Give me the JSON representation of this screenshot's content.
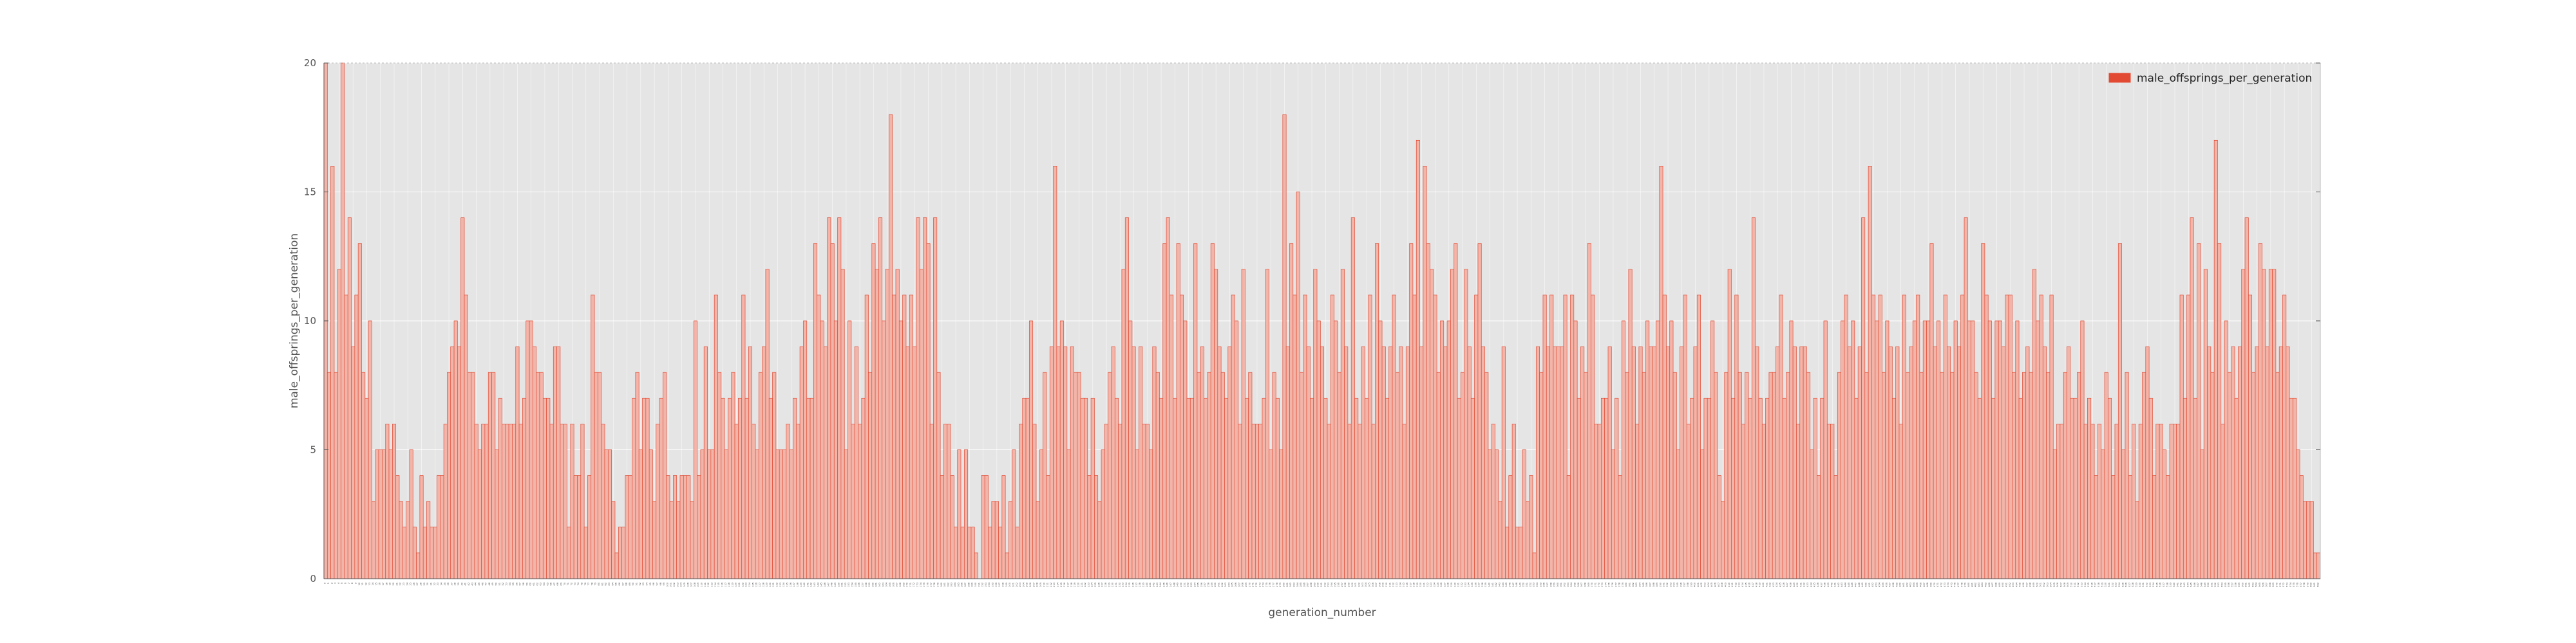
{
  "chart_data": {
    "type": "bar",
    "xlabel": "generation_number",
    "ylabel": "male_offsprings_per_generation",
    "ylim": [
      0,
      20
    ],
    "yticks": [
      0,
      5,
      10,
      15,
      20
    ],
    "grid": true,
    "legend_placement": "top-right",
    "colors": {
      "background": "#e5e5e5",
      "grid": "#ffffff",
      "bar_edge": "#e24a33",
      "bar_fill": "#f2b5aa",
      "text": "#555555"
    },
    "series": [
      {
        "name": "male_offsprings_per_generation",
        "values": [
          20,
          8,
          16,
          8,
          12,
          20,
          11,
          14,
          9,
          11,
          13,
          8,
          7,
          10,
          3,
          5,
          5,
          5,
          6,
          5,
          6,
          4,
          3,
          2,
          3,
          5,
          2,
          1,
          4,
          2,
          3,
          2,
          2,
          4,
          4,
          6,
          8,
          9,
          10,
          9,
          14,
          11,
          8,
          8,
          6,
          5,
          6,
          6,
          8,
          8,
          5,
          7,
          6,
          6,
          6,
          6,
          9,
          6,
          7,
          10,
          10,
          9,
          8,
          8,
          7,
          7,
          6,
          9,
          9,
          6,
          6,
          2,
          6,
          4,
          4,
          6,
          2,
          4,
          11,
          8,
          8,
          6,
          5,
          5,
          3,
          1,
          2,
          2,
          4,
          4,
          7,
          8,
          5,
          7,
          7,
          5,
          3,
          6,
          7,
          8,
          4,
          3,
          4,
          3,
          4,
          4,
          4,
          3,
          10,
          4,
          5,
          9,
          5,
          5,
          11,
          8,
          7,
          5,
          7,
          8,
          6,
          7,
          11,
          7,
          9,
          6,
          5,
          8,
          9,
          12,
          7,
          8,
          5,
          5,
          5,
          6,
          5,
          7,
          6,
          9,
          10,
          7,
          7,
          13,
          11,
          10,
          9,
          14,
          13,
          10,
          14,
          12,
          5,
          10,
          6,
          9,
          6,
          7,
          11,
          8,
          13,
          12,
          14,
          10,
          12,
          18,
          11,
          12,
          10,
          11,
          9,
          11,
          9,
          14,
          12,
          14,
          13,
          6,
          14,
          8,
          4,
          6,
          6,
          4,
          2,
          5,
          2,
          5,
          2,
          2,
          1,
          0,
          4,
          4,
          2,
          3,
          3,
          2,
          4,
          1,
          3,
          5,
          2,
          6,
          7,
          7,
          10,
          6,
          3,
          5,
          8,
          4,
          9,
          16,
          9,
          10,
          9,
          5,
          9,
          8,
          8,
          7,
          7,
          4,
          7,
          4,
          3,
          5,
          6,
          8,
          9,
          7,
          6,
          12,
          14,
          10,
          9,
          5,
          9,
          6,
          6,
          5,
          9,
          8,
          7,
          13,
          14,
          11,
          7,
          13,
          11,
          10,
          7,
          7,
          13,
          8,
          9,
          7,
          8,
          13,
          12,
          9,
          8,
          7,
          9,
          11,
          10,
          6,
          12,
          7,
          8,
          6,
          6,
          6,
          7,
          12,
          5,
          8,
          7,
          5,
          18,
          9,
          13,
          11,
          15,
          8,
          11,
          9,
          7,
          12,
          10,
          9,
          7,
          6,
          11,
          10,
          8,
          12,
          9,
          6,
          14,
          7,
          6,
          9,
          7,
          11,
          6,
          13,
          10,
          9,
          7,
          9,
          11,
          8,
          9,
          6,
          9,
          13,
          11,
          17,
          9,
          16,
          13,
          12,
          11,
          8,
          10,
          9,
          10,
          12,
          13,
          7,
          8,
          12,
          9,
          7,
          11,
          13,
          9,
          8,
          5,
          6,
          5,
          3,
          9,
          2,
          4,
          6,
          2,
          2,
          5,
          3,
          4,
          1,
          9,
          8,
          11,
          9,
          11,
          9,
          9,
          9,
          11,
          4,
          11,
          10,
          7,
          9,
          8,
          13,
          11,
          6,
          6,
          7,
          7,
          9,
          5,
          7,
          4,
          10,
          8,
          12,
          9,
          6,
          9,
          8,
          10,
          9,
          9,
          10,
          16,
          11,
          9,
          10,
          8,
          5,
          9,
          11,
          6,
          7,
          9,
          11,
          5,
          7,
          7,
          10,
          8,
          4,
          3,
          8,
          12,
          7,
          11,
          8,
          6,
          8,
          7,
          14,
          9,
          7,
          6,
          7,
          8,
          8,
          9,
          11,
          7,
          8,
          10,
          9,
          6,
          9,
          9,
          8,
          5,
          7,
          4,
          7,
          10,
          6,
          6,
          4,
          8,
          10,
          11,
          9,
          10,
          7,
          9,
          14,
          8,
          16,
          11,
          10,
          11,
          8,
          10,
          9,
          7,
          9,
          6,
          11,
          8,
          9,
          10,
          11,
          8,
          10,
          10,
          13,
          9,
          10,
          8,
          11,
          9,
          8,
          10,
          9,
          11,
          14,
          10,
          10,
          8,
          7,
          13,
          11,
          10,
          7,
          10,
          10,
          9,
          11,
          11,
          8,
          10,
          7,
          8,
          9,
          8,
          12,
          10,
          11,
          9,
          8,
          11,
          5,
          6,
          6,
          8,
          9,
          7,
          7,
          8,
          10,
          6,
          7,
          6,
          4,
          6,
          5,
          8,
          7,
          4,
          6,
          13,
          5,
          8,
          4,
          6,
          3,
          6,
          8,
          9,
          7,
          4,
          6,
          6,
          5,
          4,
          6,
          6,
          6,
          11,
          7,
          11,
          14,
          7,
          13,
          5,
          12,
          9,
          8,
          17,
          13,
          6,
          10,
          8,
          9,
          7,
          9,
          12,
          14,
          11,
          8,
          9,
          13,
          12,
          9,
          12,
          12,
          8,
          9,
          11,
          9,
          7,
          7,
          5,
          4,
          3,
          3,
          3,
          1,
          1
        ]
      }
    ]
  }
}
